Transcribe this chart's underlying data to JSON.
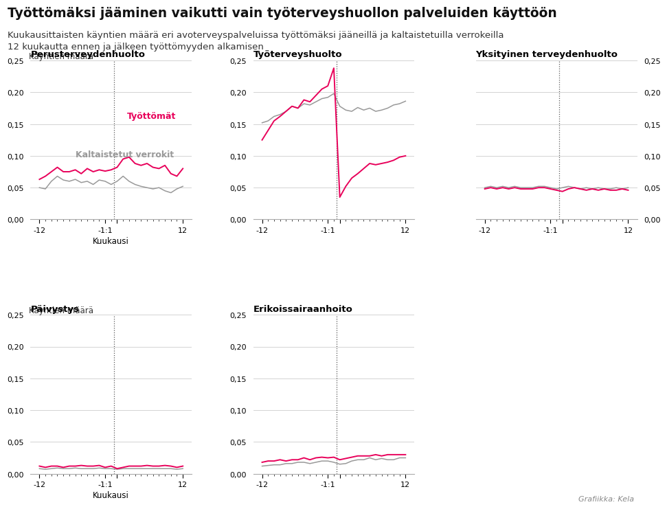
{
  "title": "Työttömäksi jääminen vaikutti vain työterveyshuollon palveluiden käyttöön",
  "subtitle_line1": "Kuukausittaisten käyntien määrä eri avoterveyspalveluissa työttömäksi jääneillä ja kaltaistetuilla verrokeilla",
  "subtitle_line2": "12 kuukautta ennen ja jälkeen työttömyyden alkamisen",
  "ylabel_text": "Käyntien määrä",
  "xlabel": "Kuukausi",
  "source": "Grafiikka: Kela",
  "color_unemployed": "#e8005a",
  "color_controls": "#999999",
  "label_unemployed": "Työttömät",
  "label_controls": "Kaltaistetut verrokit",
  "subplots": [
    {
      "title": "Perusterveydenhuolto",
      "ylim": [
        0.0,
        0.25
      ],
      "yticks": [
        0.0,
        0.05,
        0.1,
        0.15,
        0.2,
        0.25
      ],
      "yaxis_side": "left",
      "show_ylabel": true,
      "show_xlabel": true,
      "show_legend": true,
      "unemployed": [
        0.063,
        0.068,
        0.075,
        0.082,
        0.075,
        0.075,
        0.078,
        0.072,
        0.08,
        0.075,
        0.078,
        0.076,
        0.078,
        0.082,
        0.095,
        0.098,
        0.088,
        0.085,
        0.088,
        0.082,
        0.08,
        0.085,
        0.072,
        0.068,
        0.08
      ],
      "controls": [
        0.05,
        0.048,
        0.06,
        0.068,
        0.062,
        0.06,
        0.063,
        0.058,
        0.06,
        0.055,
        0.062,
        0.06,
        0.055,
        0.06,
        0.068,
        0.06,
        0.055,
        0.052,
        0.05,
        0.048,
        0.05,
        0.045,
        0.042,
        0.048,
        0.052
      ]
    },
    {
      "title": "Työterveyshuolto",
      "ylim": [
        0.0,
        0.25
      ],
      "yticks": [
        0.0,
        0.05,
        0.1,
        0.15,
        0.2,
        0.25
      ],
      "yaxis_side": "left",
      "show_ylabel": false,
      "show_xlabel": false,
      "show_legend": false,
      "unemployed": [
        0.125,
        0.14,
        0.155,
        0.162,
        0.17,
        0.178,
        0.175,
        0.188,
        0.185,
        0.195,
        0.205,
        0.21,
        0.238,
        0.035,
        0.052,
        0.065,
        0.072,
        0.08,
        0.088,
        0.086,
        0.088,
        0.09,
        0.093,
        0.098,
        0.1
      ],
      "controls": [
        0.152,
        0.155,
        0.162,
        0.165,
        0.17,
        0.178,
        0.175,
        0.182,
        0.18,
        0.185,
        0.19,
        0.192,
        0.198,
        0.178,
        0.172,
        0.17,
        0.176,
        0.172,
        0.175,
        0.17,
        0.172,
        0.175,
        0.18,
        0.182,
        0.186
      ]
    },
    {
      "title": "Yksityinen terveydenhuolto",
      "ylim": [
        0.0,
        0.25
      ],
      "yticks": [
        0.0,
        0.05,
        0.1,
        0.15,
        0.2,
        0.25
      ],
      "yaxis_side": "right",
      "show_ylabel": false,
      "show_xlabel": false,
      "show_legend": false,
      "unemployed": [
        0.048,
        0.05,
        0.048,
        0.05,
        0.048,
        0.05,
        0.048,
        0.048,
        0.048,
        0.05,
        0.05,
        0.048,
        0.046,
        0.044,
        0.048,
        0.05,
        0.048,
        0.046,
        0.048,
        0.046,
        0.048,
        0.046,
        0.046,
        0.048,
        0.046
      ],
      "controls": [
        0.05,
        0.052,
        0.05,
        0.052,
        0.05,
        0.052,
        0.05,
        0.05,
        0.05,
        0.052,
        0.052,
        0.05,
        0.048,
        0.05,
        0.052,
        0.05,
        0.048,
        0.05,
        0.048,
        0.05,
        0.048,
        0.048,
        0.05,
        0.048,
        0.05
      ]
    },
    {
      "title": "Päivystys",
      "ylim": [
        0.0,
        0.25
      ],
      "yticks": [
        0.0,
        0.05,
        0.1,
        0.15,
        0.2,
        0.25
      ],
      "yaxis_side": "left",
      "show_ylabel": true,
      "show_xlabel": true,
      "show_legend": false,
      "unemployed": [
        0.012,
        0.01,
        0.012,
        0.012,
        0.01,
        0.012,
        0.012,
        0.013,
        0.012,
        0.012,
        0.013,
        0.01,
        0.012,
        0.008,
        0.01,
        0.012,
        0.012,
        0.012,
        0.013,
        0.012,
        0.012,
        0.013,
        0.012,
        0.01,
        0.012
      ],
      "controls": [
        0.008,
        0.007,
        0.008,
        0.009,
        0.008,
        0.008,
        0.009,
        0.008,
        0.008,
        0.008,
        0.009,
        0.008,
        0.008,
        0.007,
        0.008,
        0.008,
        0.008,
        0.008,
        0.008,
        0.008,
        0.008,
        0.008,
        0.008,
        0.007,
        0.008
      ]
    },
    {
      "title": "Erikoissairaanhoito",
      "ylim": [
        0.0,
        0.25
      ],
      "yticks": [
        0.0,
        0.05,
        0.1,
        0.15,
        0.2,
        0.25
      ],
      "yaxis_side": "left",
      "show_ylabel": false,
      "show_xlabel": false,
      "show_legend": false,
      "unemployed": [
        0.018,
        0.02,
        0.02,
        0.022,
        0.02,
        0.022,
        0.022,
        0.025,
        0.022,
        0.025,
        0.026,
        0.025,
        0.026,
        0.022,
        0.024,
        0.026,
        0.028,
        0.028,
        0.028,
        0.03,
        0.028,
        0.03,
        0.03,
        0.03,
        0.03
      ],
      "controls": [
        0.012,
        0.013,
        0.014,
        0.014,
        0.016,
        0.016,
        0.018,
        0.018,
        0.016,
        0.018,
        0.02,
        0.02,
        0.018,
        0.015,
        0.016,
        0.02,
        0.022,
        0.022,
        0.025,
        0.022,
        0.024,
        0.022,
        0.022,
        0.025,
        0.025
      ]
    }
  ]
}
